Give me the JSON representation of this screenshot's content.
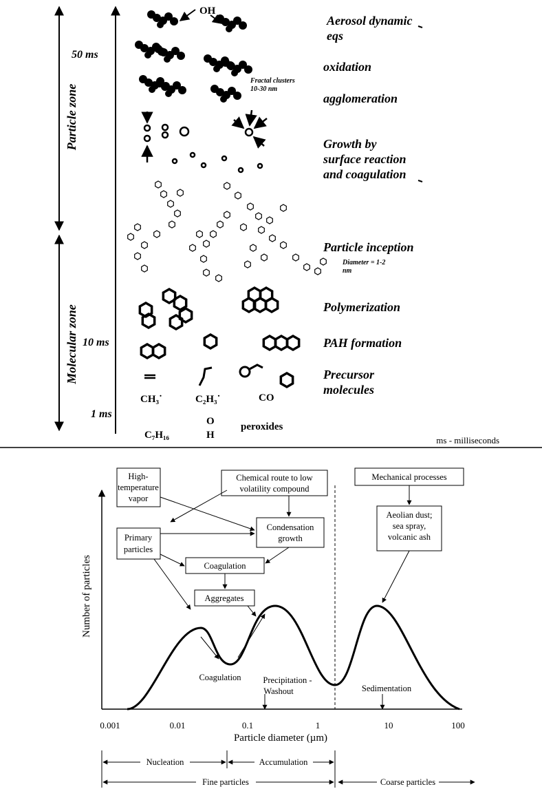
{
  "top": {
    "time_labels": [
      "50 ms",
      "10 ms",
      "1 ms"
    ],
    "zones": [
      "Particle zone",
      "Molecular zone"
    ],
    "oh_label": "OH",
    "fractal_note": [
      "Fractal clusters",
      "10-30 nm"
    ],
    "stages": [
      [
        "Aerosol dynamic",
        "eqs"
      ],
      [
        "oxidation"
      ],
      [
        "agglomeration"
      ],
      [
        "Growth by",
        "surface reaction",
        "and coagulation"
      ],
      [
        "Particle inception"
      ],
      [
        "Polymerization"
      ],
      [
        "PAH formation"
      ],
      [
        "Precursor",
        "molecules"
      ]
    ],
    "inception_note": [
      "Diameter = 1-2",
      "nm"
    ],
    "species": [
      "CH₃˙",
      "C₂H₃˙",
      "CO",
      "C₇H₁₆",
      "O",
      "H",
      "peroxides"
    ],
    "footnote": "ms - milliseconds"
  },
  "bottom": {
    "boxes": [
      [
        "High-",
        "temperature",
        "vapor"
      ],
      [
        "Chemical route to low",
        "volatility compound"
      ],
      [
        "Mechanical processes"
      ],
      [
        "Primary",
        "particles"
      ],
      [
        "Condensation",
        "growth"
      ],
      [
        "Coagulation"
      ],
      [
        "Aggregates"
      ],
      [
        "Aeolian dust;",
        "sea spray,",
        "volcanic ash"
      ]
    ],
    "curve_labels": [
      [
        "Coagulation"
      ],
      [
        "Precipitation -",
        "Washout"
      ],
      [
        "Sedimentation"
      ]
    ],
    "y_axis_label": "Number of particles",
    "x_axis_label": "Particle diameter (µm)",
    "x_ticks": [
      "0.001",
      "0.01",
      "0.1",
      "1",
      "10",
      "100"
    ],
    "ranges": [
      "Nucleation",
      "Accumulation",
      "Fine particles",
      "Coarse particles"
    ]
  }
}
